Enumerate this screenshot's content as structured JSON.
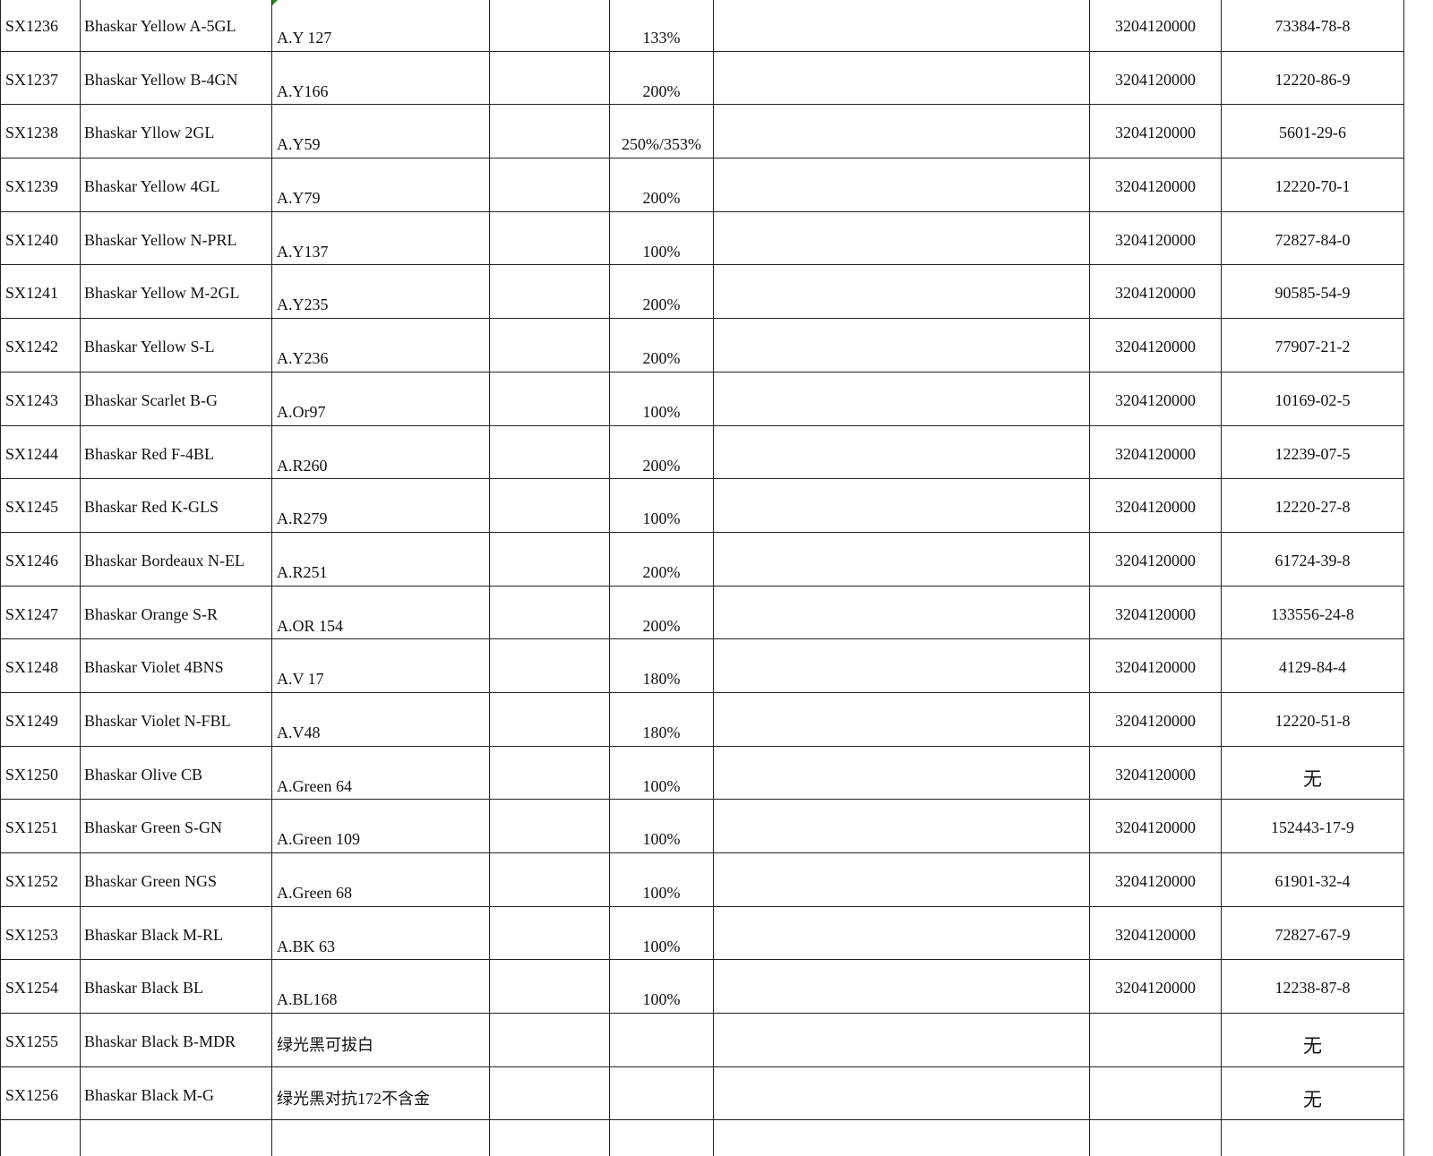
{
  "colors": {
    "grid_line": "#222222",
    "comment_marker": "#1a8a1a"
  },
  "rows": [
    {
      "code": "SX1236",
      "name": "Bhaskar Yellow A-5GL",
      "ci": "A.Y 127",
      "strength": "133%",
      "col4": "",
      "col6": "",
      "hs": "3204120000",
      "cas": "73384-78-8"
    },
    {
      "code": "SX1237",
      "name": "Bhaskar Yellow B-4GN",
      "ci": "A.Y166",
      "strength": "200%",
      "col4": "",
      "col6": "",
      "hs": "3204120000",
      "cas": "12220-86-9"
    },
    {
      "code": "SX1238",
      "name": "Bhaskar Yllow 2GL",
      "ci": "A.Y59",
      "strength": "250%/353%",
      "col4": "",
      "col6": "",
      "hs": "3204120000",
      "cas": "5601-29-6"
    },
    {
      "code": "SX1239",
      "name": "Bhaskar Yellow 4GL",
      "ci": "A.Y79",
      "strength": "200%",
      "col4": "",
      "col6": "",
      "hs": "3204120000",
      "cas": "12220-70-1"
    },
    {
      "code": "SX1240",
      "name": "Bhaskar Yellow N-PRL",
      "ci": "A.Y137",
      "strength": "100%",
      "col4": "",
      "col6": "",
      "hs": "3204120000",
      "cas": "72827-84-0"
    },
    {
      "code": "SX1241",
      "name": "Bhaskar Yellow M-2GL",
      "ci": "A.Y235",
      "strength": "200%",
      "col4": "",
      "col6": "",
      "hs": "3204120000",
      "cas": "90585-54-9"
    },
    {
      "code": "SX1242",
      "name": "Bhaskar Yellow S-L",
      "ci": "A.Y236",
      "strength": "200%",
      "col4": "",
      "col6": "",
      "hs": "3204120000",
      "cas": "77907-21-2"
    },
    {
      "code": "SX1243",
      "name": "Bhaskar Scarlet B-G",
      "ci": "A.Or97",
      "strength": "100%",
      "col4": "",
      "col6": "",
      "hs": "3204120000",
      "cas": "10169-02-5"
    },
    {
      "code": "SX1244",
      "name": "Bhaskar Red F-4BL",
      "ci": "A.R260",
      "strength": "200%",
      "col4": "",
      "col6": "",
      "hs": "3204120000",
      "cas": "12239-07-5"
    },
    {
      "code": "SX1245",
      "name": "Bhaskar Red K-GLS",
      "ci": "A.R279",
      "strength": "100%",
      "col4": "",
      "col6": "",
      "hs": "3204120000",
      "cas": "12220-27-8"
    },
    {
      "code": "SX1246",
      "name": "Bhaskar Bordeaux N-EL",
      "ci": "A.R251",
      "strength": "200%",
      "col4": "",
      "col6": "",
      "hs": "3204120000",
      "cas": "61724-39-8"
    },
    {
      "code": "SX1247",
      "name": "Bhaskar Orange S-R",
      "ci": "A.OR 154",
      "strength": "200%",
      "col4": "",
      "col6": "",
      "hs": "3204120000",
      "cas": "133556-24-8"
    },
    {
      "code": "SX1248",
      "name": "Bhaskar Violet 4BNS",
      "ci": "A.V 17",
      "strength": "180%",
      "col4": "",
      "col6": "",
      "hs": "3204120000",
      "cas": "4129-84-4"
    },
    {
      "code": "SX1249",
      "name": "Bhaskar Violet N-FBL",
      "ci": "A.V48",
      "strength": "180%",
      "col4": "",
      "col6": "",
      "hs": "3204120000",
      "cas": "12220-51-8"
    },
    {
      "code": "SX1250",
      "name": "Bhaskar Olive CB",
      "ci": "A.Green 64",
      "strength": "100%",
      "col4": "",
      "col6": "",
      "hs": "3204120000",
      "cas": "无"
    },
    {
      "code": "SX1251",
      "name": "Bhaskar Green S-GN",
      "ci": "A.Green 109",
      "strength": "100%",
      "col4": "",
      "col6": "",
      "hs": "3204120000",
      "cas": "152443-17-9"
    },
    {
      "code": "SX1252",
      "name": "Bhaskar Green NGS",
      "ci": "A.Green 68",
      "strength": "100%",
      "col4": "",
      "col6": "",
      "hs": "3204120000",
      "cas": "61901-32-4"
    },
    {
      "code": "SX1253",
      "name": "Bhaskar Black M-RL",
      "ci": "A.BK 63",
      "strength": "100%",
      "col4": "",
      "col6": "",
      "hs": "3204120000",
      "cas": "72827-67-9"
    },
    {
      "code": "SX1254",
      "name": "Bhaskar Black BL",
      "ci": "A.BL168",
      "strength": "100%",
      "col4": "",
      "col6": "",
      "hs": "3204120000",
      "cas": "12238-87-8"
    },
    {
      "code": "SX1255",
      "name": "Bhaskar Black B-MDR",
      "ci": "绿光黑可拔白",
      "strength": "",
      "col4": "",
      "col6": "",
      "hs": "",
      "cas": "无"
    },
    {
      "code": "SX1256",
      "name": "Bhaskar Black M-G",
      "ci": "绿光黑对抗172不含金",
      "strength": "",
      "col4": "",
      "col6": "",
      "hs": "",
      "cas": "无"
    }
  ]
}
